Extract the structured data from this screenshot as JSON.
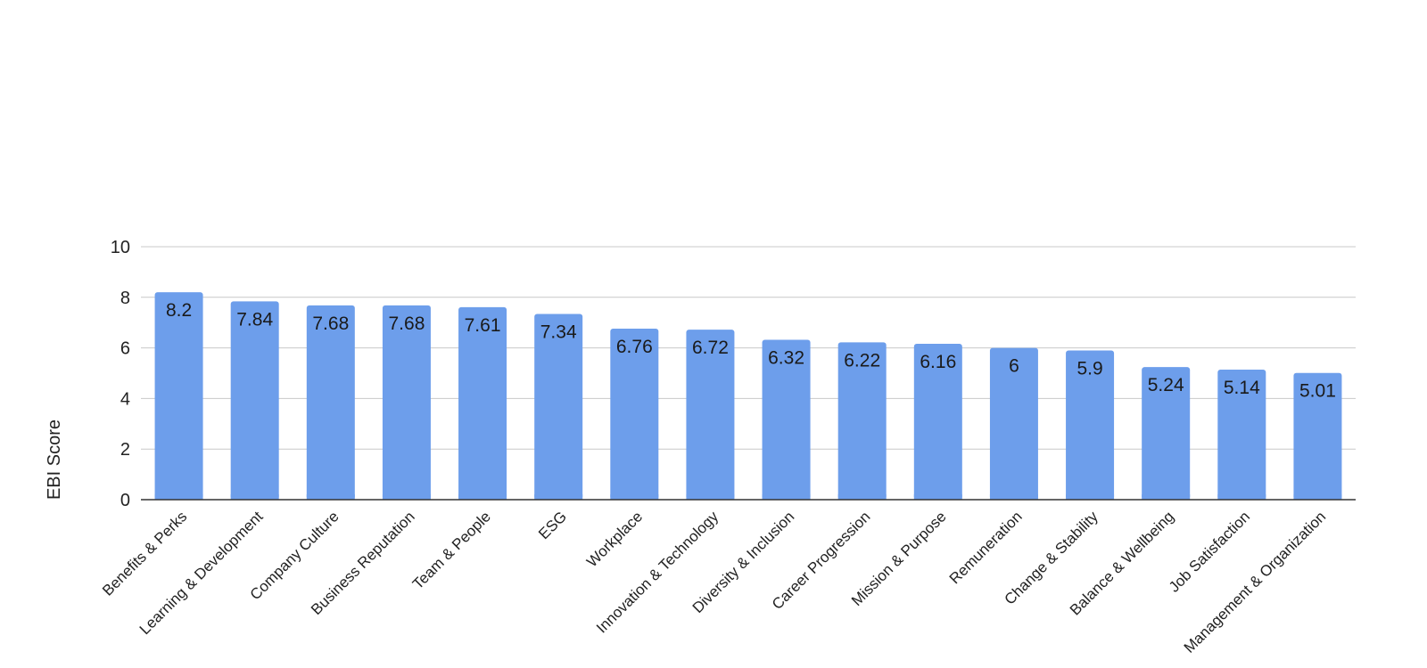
{
  "chart_data": {
    "type": "bar",
    "title": "",
    "xlabel": "",
    "ylabel": "EBI Score",
    "ylim": [
      0,
      10
    ],
    "yticks": [
      0,
      2,
      4,
      6,
      8,
      10
    ],
    "grid": true,
    "legend": "none",
    "bar_color": "#6d9eeb",
    "categories": [
      "Benefits & Perks",
      "Learning & Development",
      "Company Culture",
      "Business Reputation",
      "Team & People",
      "ESG",
      "Workplace",
      "Innovation & Technology",
      "Diversity & Inclusion",
      "Career Progression",
      "Mission & Purpose",
      "Remuneration",
      "Change & Stability",
      "Balance & Wellbeing",
      "Job Satisfaction",
      "Management & Organization"
    ],
    "values": [
      8.2,
      7.84,
      7.68,
      7.68,
      7.61,
      7.34,
      6.76,
      6.72,
      6.32,
      6.22,
      6.16,
      6,
      5.9,
      5.24,
      5.14,
      5.01
    ],
    "value_labels": [
      "8.2",
      "7.84",
      "7.68",
      "7.68",
      "7.61",
      "7.34",
      "6.76",
      "6.72",
      "6.32",
      "6.22",
      "6.16",
      "6",
      "5.9",
      "5.24",
      "5.14",
      "5.01"
    ]
  }
}
